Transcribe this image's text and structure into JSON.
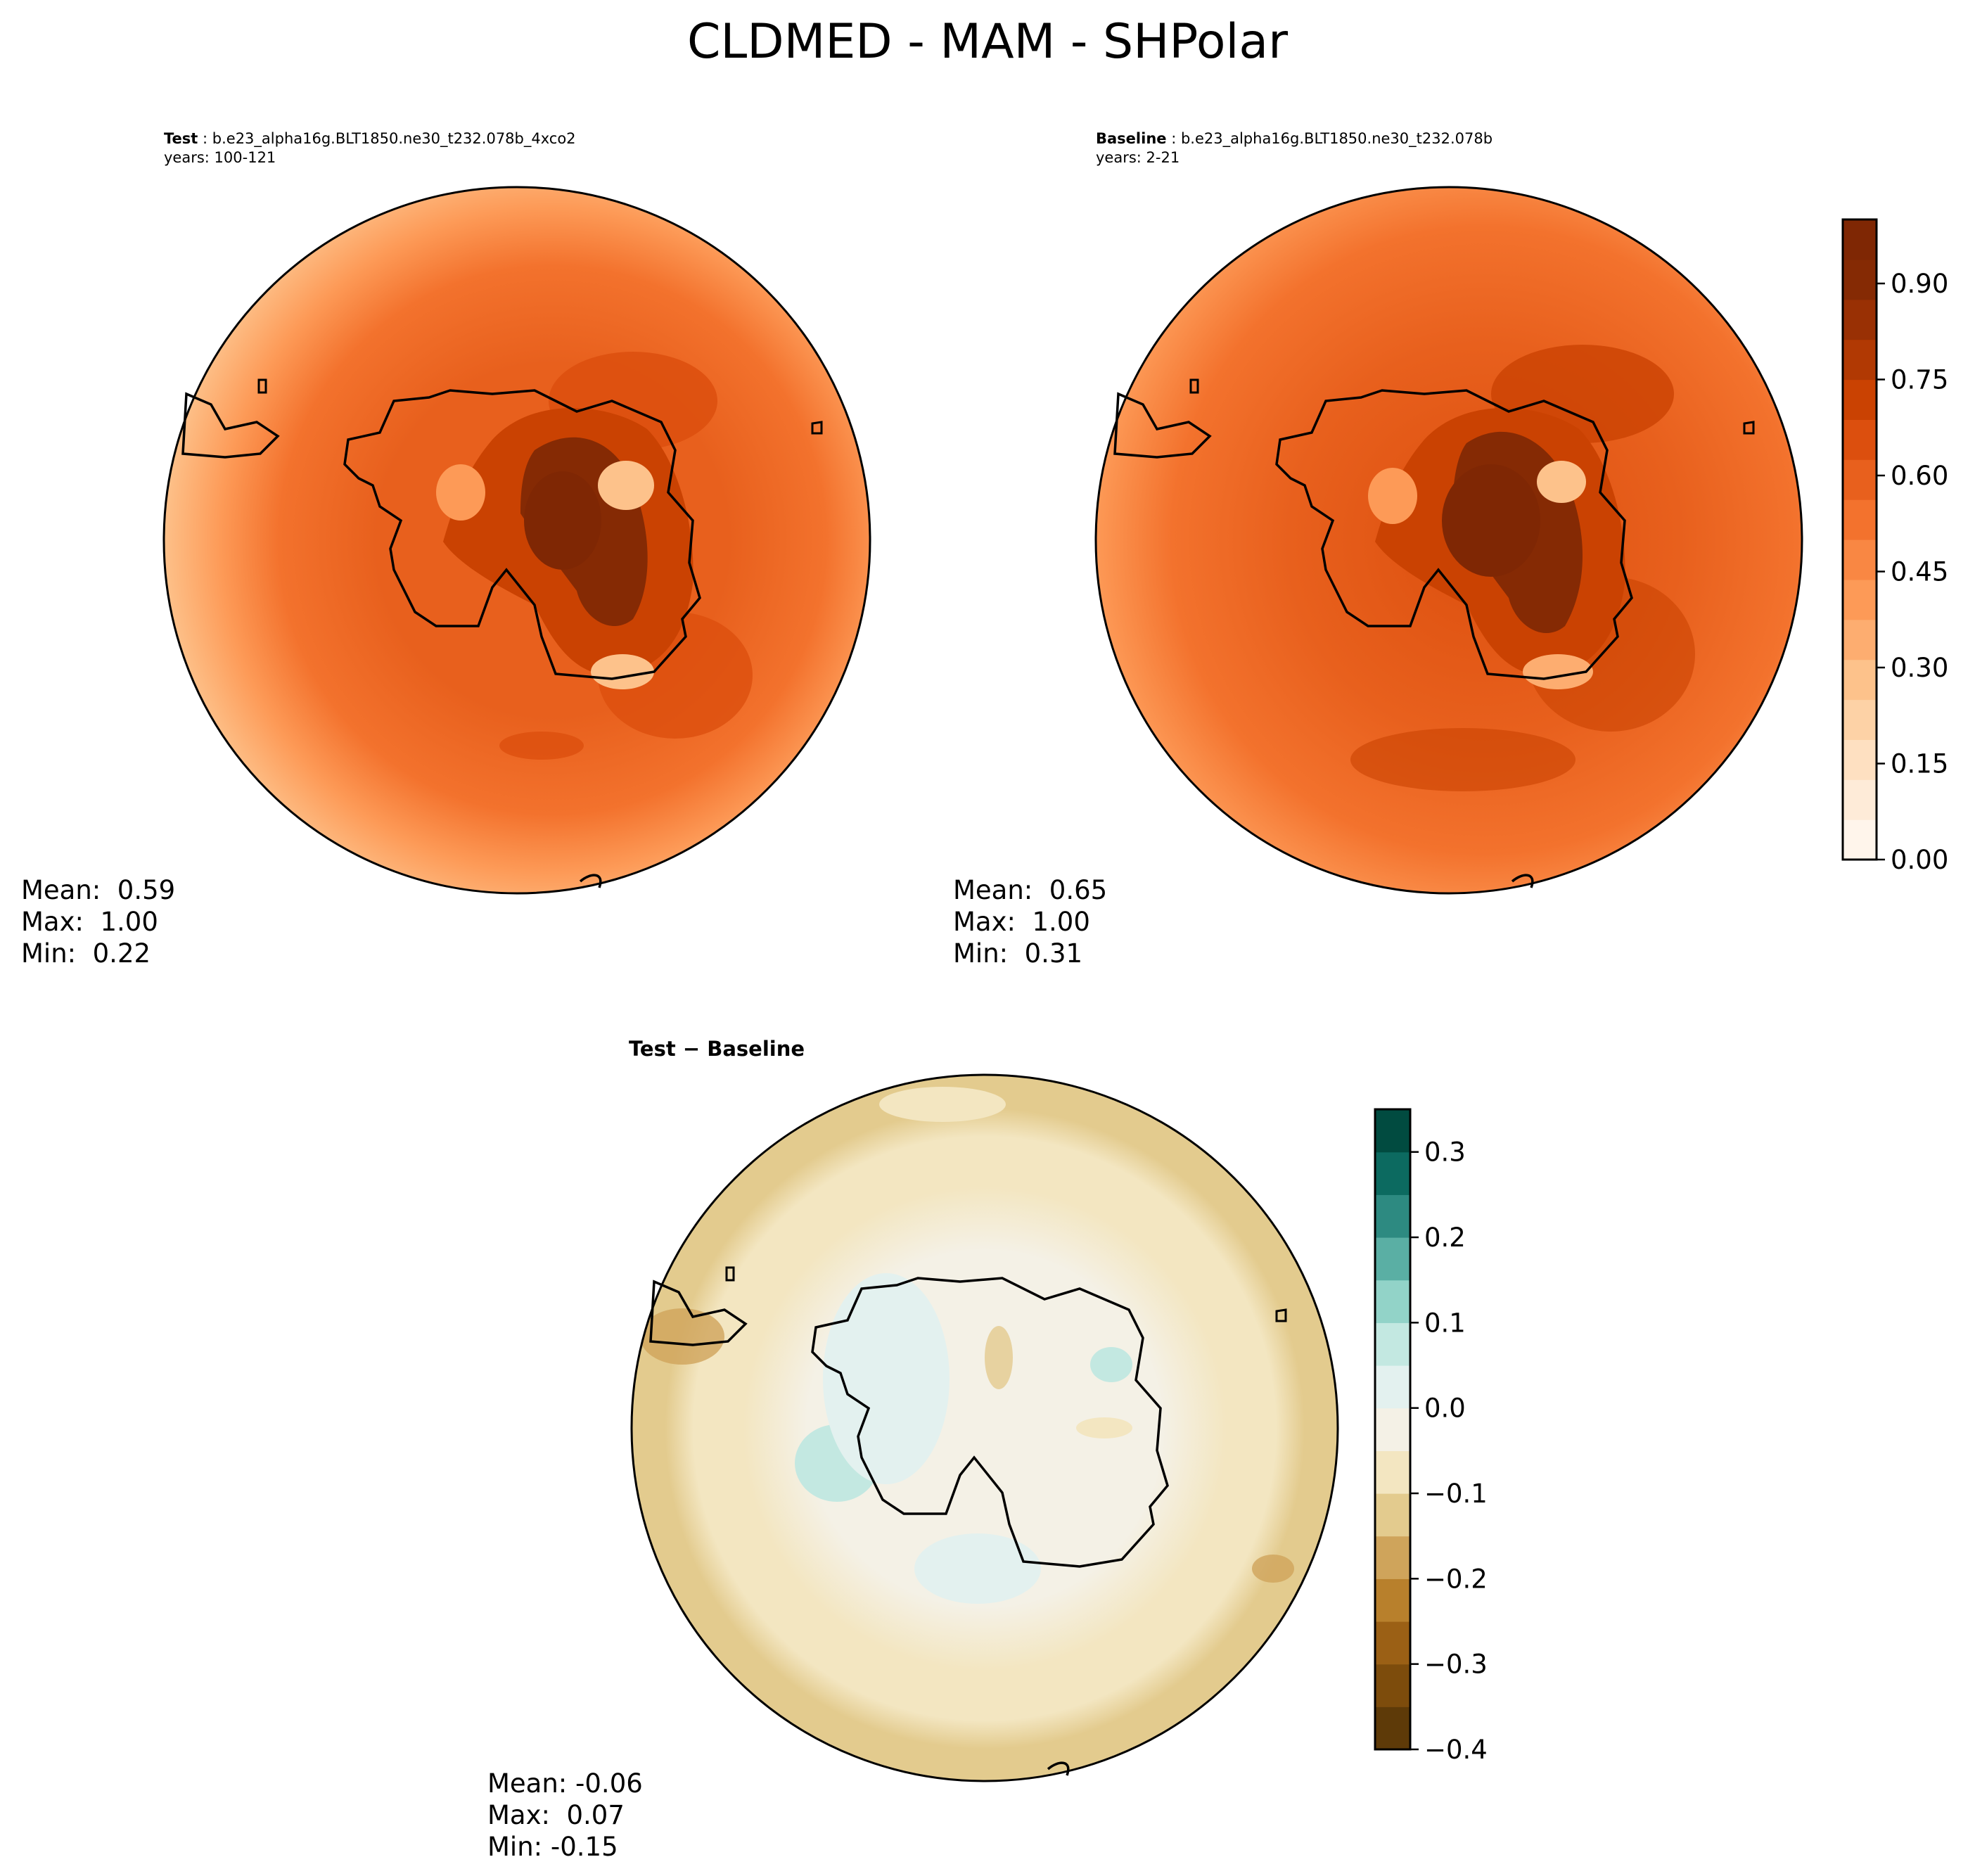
{
  "figure": {
    "title": "CLDMED - MAM - SHPolar"
  },
  "panels": {
    "test": {
      "label": "Test",
      "case": "b.e23_alpha16g.BLT1850.ne30_t232.078b_4xco2",
      "years": "years: 100-121",
      "stats": {
        "mean": "Mean:  0.59",
        "max": "Max:  1.00",
        "min": "Min:  0.22"
      }
    },
    "baseline": {
      "label": "Baseline",
      "case": "b.e23_alpha16g.BLT1850.ne30_t232.078b",
      "years": "years: 2-21",
      "stats": {
        "mean": "Mean:  0.65",
        "max": "Max:  1.00",
        "min": "Min:  0.31"
      }
    },
    "diff": {
      "title": "Test − Baseline",
      "stats": {
        "mean": "Mean: -0.06",
        "max": "Max:  0.07",
        "min": "Min: -0.15"
      }
    }
  },
  "colorbars": {
    "field": {
      "colormap": "Oranges",
      "colors": [
        "#fff5eb",
        "#feebd8",
        "#fee0c1",
        "#fdd2a6",
        "#fdc28b",
        "#fdad70",
        "#fd9a57",
        "#f98743",
        "#f3722d",
        "#e8601d",
        "#dc4f0e",
        "#ca4202",
        "#b13903",
        "#993004",
        "#852a04",
        "#7f2704"
      ],
      "range": [
        0.0,
        1.0
      ],
      "ticks": [
        "0.00",
        "0.15",
        "0.30",
        "0.45",
        "0.60",
        "0.75",
        "0.90"
      ],
      "tick_values": [
        0.0,
        0.15,
        0.3,
        0.45,
        0.6,
        0.75,
        0.9
      ]
    },
    "diff": {
      "colormap": "BrBG",
      "colors": [
        "#5e3a08",
        "#7d4c0c",
        "#9b6015",
        "#b8802c",
        "#cfa45b",
        "#e3cb8e",
        "#f3e6c1",
        "#f4f1e6",
        "#e3f1ef",
        "#c3e8e1",
        "#92d3c8",
        "#5aafa4",
        "#2d8a81",
        "#0c6a60",
        "#014b40"
      ],
      "range": [
        -0.4,
        0.35
      ],
      "ticks": [
        "−0.4",
        "−0.3",
        "−0.2",
        "−0.1",
        "0.0",
        "0.1",
        "0.2",
        "0.3"
      ],
      "tick_values": [
        -0.4,
        -0.3,
        -0.2,
        -0.1,
        0.0,
        0.1,
        0.2,
        0.3
      ]
    }
  }
}
